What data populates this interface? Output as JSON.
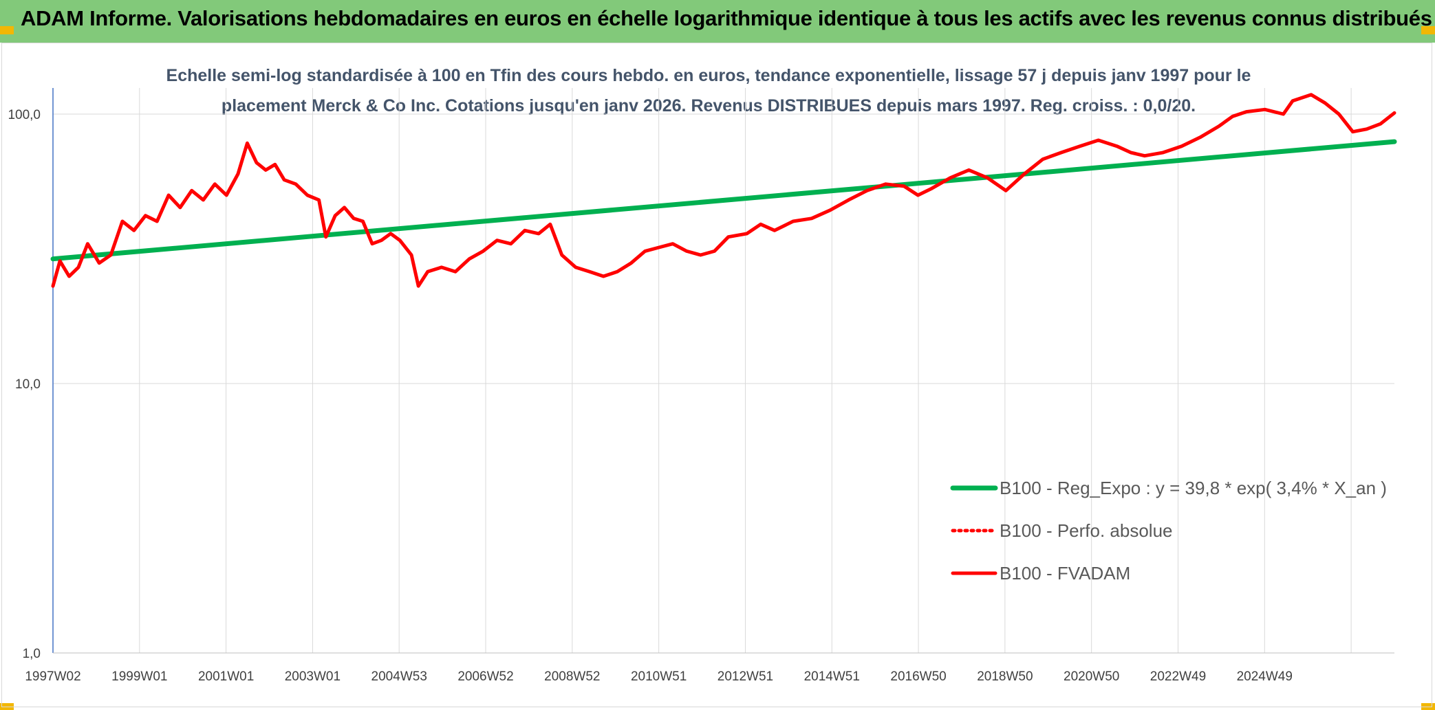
{
  "header": {
    "title": "ADAM Informe. Valorisations hebdomadaires en euros en échelle logarithmique identique à tous les actifs avec les revenus connus distribués",
    "background": "#82c97a"
  },
  "chart_data": {
    "type": "line",
    "title": "Echelle semi-log standardisée à 100 en Tfin des cours hebdo. en euros, tendance exponentielle, lissage 57 j depuis janv 1997 pour le placement Merck & Co Inc. Cotations jusqu'en janv 2026. Revenus DISTRIBUES depuis mars 1997. Reg. croiss. : 0,0/20.",
    "y_scale": "log",
    "ylim": [
      1,
      100
    ],
    "y_ticks": [
      "1,0",
      "10,0",
      "100,0"
    ],
    "x_tick_labels": [
      "1997W02",
      "1999W01",
      "2001W01",
      "2003W01",
      "2004W53",
      "2006W52",
      "2008W52",
      "2010W51",
      "2012W51",
      "2014W51",
      "2016W50",
      "2018W50",
      "2020W50",
      "2022W49",
      "2024W49"
    ],
    "grid": true,
    "legend_position": "bottom-right",
    "series": [
      {
        "name": "B100 - Reg_Expo : y = 39,8 * exp( 3,4% *  X_an )",
        "color": "#00b050",
        "style": "solid",
        "x": [
          1997.0,
          2026.0
        ],
        "y": [
          29.0,
          79.0
        ]
      },
      {
        "name": "B100 - Perfo. absolue",
        "color": "#ff0000",
        "style": "dotted",
        "x": [],
        "y": []
      },
      {
        "name": "B100 - FVADAM",
        "color": "#ff0000",
        "style": "solid",
        "x": [
          1997.0,
          1997.15,
          1997.35,
          1997.55,
          1997.75,
          1998.0,
          1998.25,
          1998.5,
          1998.75,
          1999.0,
          1999.25,
          1999.5,
          1999.75,
          2000.0,
          2000.25,
          2000.5,
          2000.75,
          2001.0,
          2001.2,
          2001.4,
          2001.6,
          2001.8,
          2002.0,
          2002.25,
          2002.5,
          2002.75,
          2002.9,
          2003.1,
          2003.3,
          2003.5,
          2003.7,
          2003.9,
          2004.1,
          2004.3,
          2004.5,
          2004.75,
          2004.9,
          2005.1,
          2005.4,
          2005.7,
          2006.0,
          2006.3,
          2006.6,
          2006.9,
          2007.2,
          2007.5,
          2007.75,
          2008.0,
          2008.3,
          2008.6,
          2008.9,
          2009.2,
          2009.5,
          2009.8,
          2010.1,
          2010.4,
          2010.7,
          2011.0,
          2011.3,
          2011.6,
          2012.0,
          2012.3,
          2012.6,
          2013.0,
          2013.4,
          2013.8,
          2014.2,
          2014.6,
          2015.0,
          2015.4,
          2015.7,
          2016.0,
          2016.4,
          2016.8,
          2017.2,
          2017.6,
          2018.0,
          2018.4,
          2018.8,
          2019.2,
          2019.6,
          2020.0,
          2020.3,
          2020.6,
          2021.0,
          2021.4,
          2021.8,
          2022.2,
          2022.5,
          2022.8,
          2023.2,
          2023.6,
          2023.8,
          2024.2,
          2024.5,
          2024.8,
          2025.1,
          2025.4,
          2025.7,
          2026.0
        ],
        "y": [
          23.0,
          28.5,
          25.0,
          27.0,
          33.0,
          28.0,
          30.0,
          40.0,
          37.0,
          42.0,
          40.0,
          50.0,
          45.0,
          52.0,
          48.0,
          55.0,
          50.0,
          60.0,
          78.0,
          66.0,
          62.0,
          65.0,
          57.0,
          55.0,
          50.0,
          48.0,
          35.0,
          42.0,
          45.0,
          41.0,
          40.0,
          33.0,
          34.0,
          36.0,
          34.0,
          30.0,
          23.0,
          26.0,
          27.0,
          26.0,
          29.0,
          31.0,
          34.0,
          33.0,
          37.0,
          36.0,
          39.0,
          30.0,
          27.0,
          26.0,
          25.0,
          26.0,
          28.0,
          31.0,
          32.0,
          33.0,
          31.0,
          30.0,
          31.0,
          35.0,
          36.0,
          39.0,
          37.0,
          40.0,
          41.0,
          44.0,
          48.0,
          52.0,
          55.0,
          54.0,
          50.0,
          53.0,
          58.0,
          62.0,
          58.0,
          52.0,
          60.0,
          68.0,
          72.0,
          76.0,
          80.0,
          76.0,
          72.0,
          70.0,
          72.0,
          76.0,
          82.0,
          90.0,
          98.0,
          102.0,
          104.0,
          100.0,
          112.0,
          118.0,
          110.0,
          100.0,
          86.0,
          88.0,
          92.0,
          101.0
        ]
      }
    ]
  }
}
